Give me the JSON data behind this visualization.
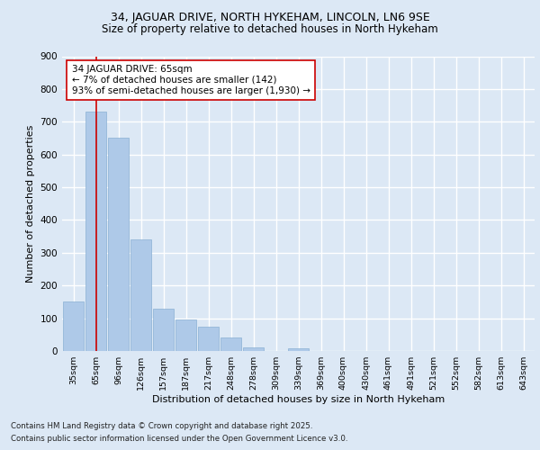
{
  "title1": "34, JAGUAR DRIVE, NORTH HYKEHAM, LINCOLN, LN6 9SE",
  "title2": "Size of property relative to detached houses in North Hykeham",
  "xlabel": "Distribution of detached houses by size in North Hykeham",
  "ylabel": "Number of detached properties",
  "categories": [
    "35sqm",
    "65sqm",
    "96sqm",
    "126sqm",
    "157sqm",
    "187sqm",
    "217sqm",
    "248sqm",
    "278sqm",
    "309sqm",
    "339sqm",
    "369sqm",
    "400sqm",
    "430sqm",
    "461sqm",
    "491sqm",
    "521sqm",
    "552sqm",
    "582sqm",
    "613sqm",
    "643sqm"
  ],
  "values": [
    150,
    730,
    650,
    340,
    130,
    95,
    75,
    40,
    10,
    0,
    7,
    0,
    0,
    0,
    0,
    0,
    0,
    0,
    0,
    0,
    0
  ],
  "bar_color": "#aec9e8",
  "bar_edge_color": "#8ab0d4",
  "vline_x": 1,
  "vline_color": "#cc0000",
  "annotation_text": "34 JAGUAR DRIVE: 65sqm\n← 7% of detached houses are smaller (142)\n93% of semi-detached houses are larger (1,930) →",
  "annotation_box_color": "#ffffff",
  "annotation_box_edge": "#cc0000",
  "bg_color": "#dce8f5",
  "plot_bg_color": "#dce8f5",
  "grid_color": "#ffffff",
  "footer1": "Contains HM Land Registry data © Crown copyright and database right 2025.",
  "footer2": "Contains public sector information licensed under the Open Government Licence v3.0.",
  "ylim": [
    0,
    900
  ],
  "yticks": [
    0,
    100,
    200,
    300,
    400,
    500,
    600,
    700,
    800,
    900
  ]
}
